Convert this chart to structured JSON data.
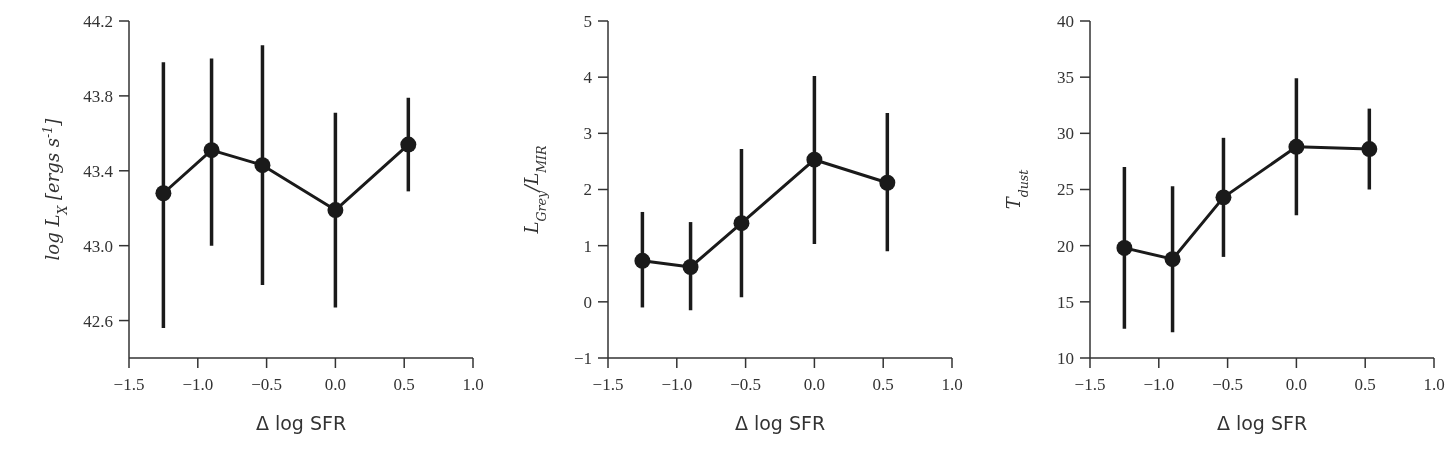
{
  "chart_data": [
    {
      "type": "line",
      "xlabel": "Δ log SFR",
      "ylabel": "log L$_{X}$ [ergs s$^{-1}$]",
      "marker": "circle",
      "line_style": "solid",
      "grid": false,
      "xlim": [
        -1.5,
        1.0
      ],
      "xticks": [
        {
          "value": -1.5,
          "label": "−1.5"
        },
        {
          "value": -1.0,
          "label": "−1.0"
        },
        {
          "value": -0.5,
          "label": "−0.5"
        },
        {
          "value": 0,
          "label": "0.0"
        },
        {
          "value": 0.5,
          "label": "0.5"
        },
        {
          "value": 1.0,
          "label": "1.0"
        }
      ],
      "ylim": [
        42.4,
        44.2
      ],
      "yticks": [
        {
          "value": 42.6,
          "label": "42.6"
        },
        {
          "value": 43.0,
          "label": "43.0"
        },
        {
          "value": 43.4,
          "label": "43.4"
        },
        {
          "value": 43.8,
          "label": "43.8"
        },
        {
          "value": 44.2,
          "label": "44.2"
        }
      ],
      "series": [
        {
          "color": "#1a1a1a",
          "x": [
            -1.25,
            -0.9,
            -0.53,
            0,
            0.53
          ],
          "values": [
            43.28,
            43.51,
            43.43,
            43.19,
            43.54
          ],
          "errors": [
            [
              42.56,
              43.98
            ],
            [
              43.0,
              44.0
            ],
            [
              42.79,
              44.07
            ],
            [
              42.67,
              43.71
            ],
            [
              43.29,
              43.79
            ]
          ]
        }
      ]
    },
    {
      "type": "line",
      "xlabel": "Δ log SFR",
      "ylabel": "L$_{Grey}$/L$_{MIR}$",
      "marker": "circle",
      "line_style": "solid",
      "grid": false,
      "xlim": [
        -1.5,
        1.0
      ],
      "xticks": [
        {
          "value": -1.5,
          "label": "−1.5"
        },
        {
          "value": -1.0,
          "label": "−1.0"
        },
        {
          "value": -0.5,
          "label": "−0.5"
        },
        {
          "value": 0,
          "label": "0.0"
        },
        {
          "value": 0.5,
          "label": "0.5"
        },
        {
          "value": 1.0,
          "label": "1.0"
        }
      ],
      "ylim": [
        -1,
        5
      ],
      "yticks": [
        {
          "value": -1,
          "label": "−1"
        },
        0,
        1,
        2,
        3,
        4,
        5
      ],
      "series": [
        {
          "color": "#1a1a1a",
          "x": [
            -1.25,
            -0.9,
            -0.53,
            0,
            0.53
          ],
          "values": [
            0.73,
            0.62,
            1.4,
            2.53,
            2.12
          ],
          "errors": [
            [
              -0.1,
              1.6
            ],
            [
              -0.15,
              1.42
            ],
            [
              0.08,
              2.72
            ],
            [
              1.03,
              4.02
            ],
            [
              0.9,
              3.36
            ]
          ]
        }
      ]
    },
    {
      "type": "line",
      "xlabel": "Δ log SFR",
      "ylabel": "T$_{dust}$",
      "marker": "circle",
      "line_style": "solid",
      "grid": false,
      "xlim": [
        -1.5,
        1.0
      ],
      "xticks": [
        {
          "value": -1.5,
          "label": "−1.5"
        },
        {
          "value": -1.0,
          "label": "−1.0"
        },
        {
          "value": -0.5,
          "label": "−0.5"
        },
        {
          "value": 0,
          "label": "0.0"
        },
        {
          "value": 0.5,
          "label": "0.5"
        },
        {
          "value": 1.0,
          "label": "1.0"
        }
      ],
      "ylim": [
        10,
        40
      ],
      "yticks": [
        10,
        15,
        20,
        25,
        30,
        35,
        40
      ],
      "series": [
        {
          "color": "#1a1a1a",
          "x": [
            -1.25,
            -0.9,
            -0.53,
            0,
            0.53
          ],
          "values": [
            19.8,
            18.8,
            24.3,
            28.8,
            28.6
          ],
          "errors": [
            [
              12.6,
              27
            ],
            [
              12.3,
              25.3
            ],
            [
              19,
              29.6
            ],
            [
              22.7,
              34.9
            ],
            [
              25,
              32.2
            ]
          ]
        }
      ]
    }
  ]
}
